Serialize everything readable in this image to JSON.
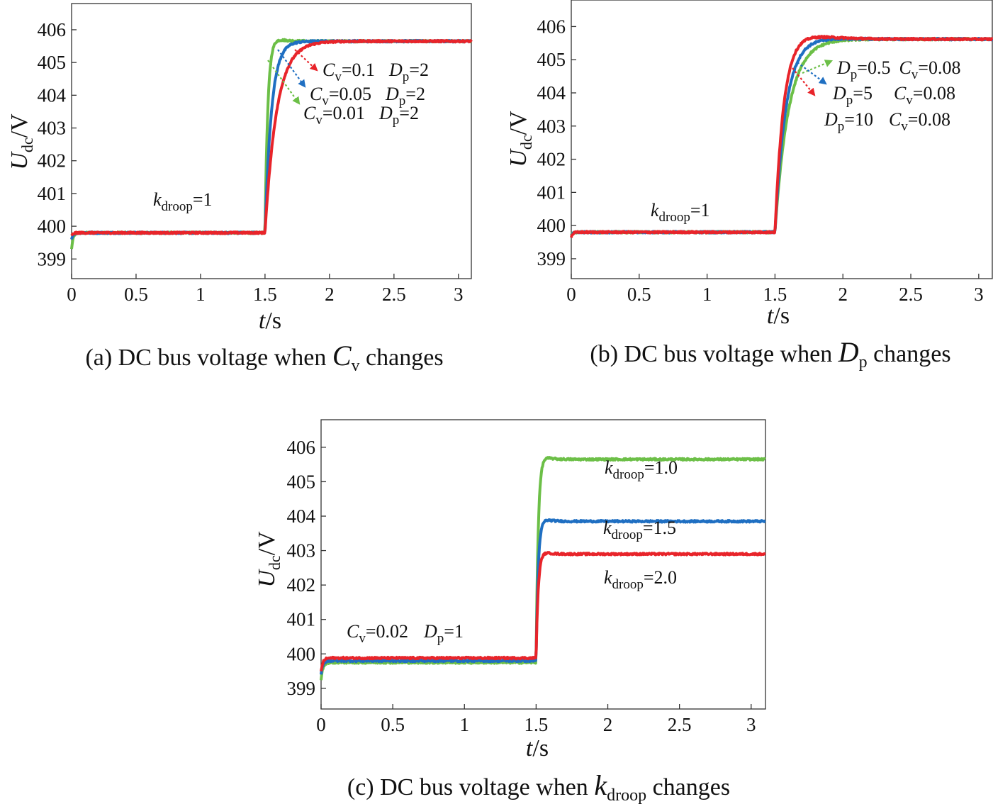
{
  "chart_data": [
    {
      "type": "line",
      "panel": "a",
      "caption": {
        "prefix": "(a) DC bus voltage when ",
        "var": "C",
        "sub": "v",
        "suffix": " changes"
      },
      "xlabel": {
        "var": "t",
        "unit": "/s"
      },
      "ylabel": {
        "var": "U",
        "sub": "dc",
        "unit": "/V"
      },
      "xlim": [
        0,
        3.1
      ],
      "ylim": [
        398.4,
        406.8
      ],
      "xticks": [
        "0",
        "0.5",
        "1",
        "1.5",
        "2",
        "2.5",
        "3"
      ],
      "yticks": [
        "399",
        "400",
        "401",
        "402",
        "403",
        "404",
        "405",
        "406"
      ],
      "step_time": 1.5,
      "series": [
        {
          "name": "Cv=0.01 Dp=2",
          "color": "#6cbf47",
          "initial": 399.8,
          "final": 405.65,
          "tau": 0.022,
          "overshoot": 0.12,
          "dip": 0.5
        },
        {
          "name": "Cv=0.05 Dp=2",
          "color": "#1f6fc2",
          "initial": 399.8,
          "final": 405.65,
          "tau": 0.05,
          "overshoot": 0.0,
          "dip": 0.2
        },
        {
          "name": "Cv=0.1 Dp=2",
          "color": "#e8242a",
          "initial": 399.8,
          "final": 405.65,
          "tau": 0.09,
          "overshoot": 0.0,
          "dip": 0.1
        }
      ],
      "annotations": [
        {
          "var": "k",
          "sub": "droop",
          "rest": "=1"
        },
        {
          "p1v": "C",
          "p1s": "v",
          "p1r": "=0.1",
          "p2v": "D",
          "p2s": "p",
          "p2r": "=2"
        },
        {
          "p1v": "C",
          "p1s": "v",
          "p1r": "=0.05",
          "p2v": "D",
          "p2s": "p",
          "p2r": "=2"
        },
        {
          "p1v": "C",
          "p1s": "v",
          "p1r": "=0.01",
          "p2v": "D",
          "p2s": "p",
          "p2r": "=2"
        }
      ]
    },
    {
      "type": "line",
      "panel": "b",
      "caption": {
        "prefix": "(b) DC bus voltage when ",
        "var": "D",
        "sub": "p",
        "suffix": " changes"
      },
      "xlabel": {
        "var": "t",
        "unit": "/s"
      },
      "ylabel": {
        "var": "U",
        "sub": "dc",
        "unit": "/V"
      },
      "xlim": [
        0,
        3.1
      ],
      "ylim": [
        398.4,
        406.8
      ],
      "xticks": [
        "0",
        "0.5",
        "1",
        "1.5",
        "2",
        "2.5",
        "3"
      ],
      "yticks": [
        "399",
        "400",
        "401",
        "402",
        "403",
        "404",
        "405",
        "406"
      ],
      "step_time": 1.5,
      "series": [
        {
          "name": "Dp=0.5 Cv=0.08",
          "color": "#6cbf47",
          "initial": 399.8,
          "final": 405.62,
          "tau": 0.1,
          "overshoot": 0.0,
          "dip": 0.1
        },
        {
          "name": "Dp=5 Cv=0.08",
          "color": "#1f6fc2",
          "initial": 399.8,
          "final": 405.62,
          "tau": 0.08,
          "overshoot": 0.05,
          "dip": 0.1
        },
        {
          "name": "Dp=10 Cv=0.08",
          "color": "#e8242a",
          "initial": 399.8,
          "final": 405.62,
          "tau": 0.065,
          "overshoot": 0.18,
          "dip": 0.15
        }
      ],
      "annotations": [
        {
          "var": "k",
          "sub": "droop",
          "rest": "=1"
        },
        {
          "p1v": "D",
          "p1s": "p",
          "p1r": "=0.5",
          "p2v": "C",
          "p2s": "v",
          "p2r": "=0.08"
        },
        {
          "p1v": "D",
          "p1s": "p",
          "p1r": "=5",
          "p2v": "C",
          "p2s": "v",
          "p2r": "=0.08"
        },
        {
          "p1v": "D",
          "p1s": "p",
          "p1r": "=10",
          "p2v": "C",
          "p2s": "v",
          "p2r": "=0.08"
        }
      ]
    },
    {
      "type": "line",
      "panel": "c",
      "caption": {
        "prefix": "(c) DC bus voltage when ",
        "var": "k",
        "sub": "droop",
        "suffix": " changes"
      },
      "xlabel": {
        "var": "t",
        "unit": "/s"
      },
      "ylabel": {
        "var": "U",
        "sub": "dc",
        "unit": "/V"
      },
      "xlim": [
        0,
        3.1
      ],
      "ylim": [
        398.4,
        406.8
      ],
      "xticks": [
        "0",
        "0.5",
        "1",
        "1.5",
        "2",
        "2.5",
        "3"
      ],
      "yticks": [
        "399",
        "400",
        "401",
        "402",
        "403",
        "404",
        "405",
        "406"
      ],
      "step_time": 1.5,
      "series": [
        {
          "name": "kdroop=1.0",
          "color": "#6cbf47",
          "initial": 399.75,
          "final": 405.65,
          "tau": 0.015,
          "overshoot": 0.12,
          "dip": 0.5
        },
        {
          "name": "kdroop=1.5",
          "color": "#1f6fc2",
          "initial": 399.8,
          "final": 403.85,
          "tau": 0.015,
          "overshoot": 0.1,
          "dip": 0.4
        },
        {
          "name": "kdroop=2.0",
          "color": "#e8242a",
          "initial": 399.88,
          "final": 402.9,
          "tau": 0.015,
          "overshoot": 0.08,
          "dip": 0.4
        }
      ],
      "annotations": [
        {
          "p1v": "C",
          "p1s": "v",
          "p1r": "=0.02",
          "p2v": "D",
          "p2s": "p",
          "p2r": "=1"
        },
        {
          "var": "k",
          "sub": "droop",
          "rest": "=1.0"
        },
        {
          "var": "k",
          "sub": "droop",
          "rest": "=1.5"
        },
        {
          "var": "k",
          "sub": "droop",
          "rest": "=2.0"
        }
      ]
    }
  ]
}
